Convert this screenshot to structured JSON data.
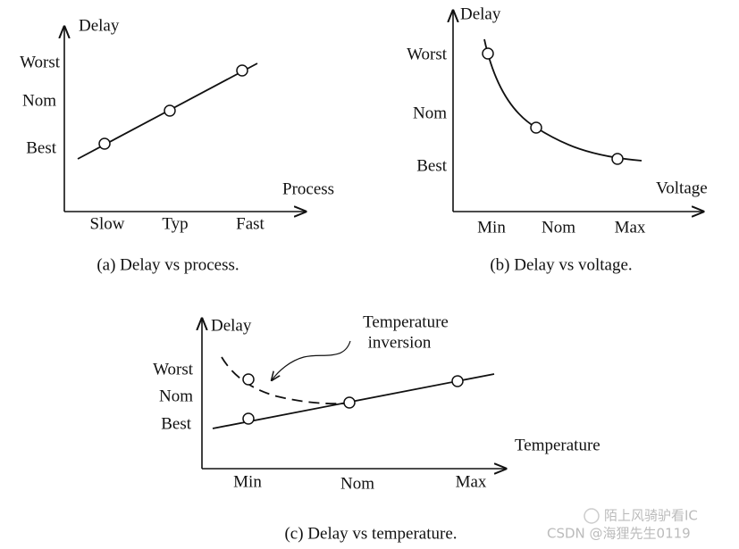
{
  "panels": [
    {
      "y_label": "Delay",
      "x_label": "Process",
      "y_levels": [
        "Worst",
        "Nom",
        "Best"
      ],
      "x_levels": [
        "Slow",
        "Typ",
        "Fast"
      ],
      "caption": "(a) Delay vs process."
    },
    {
      "y_label": "Delay",
      "x_label": "Voltage",
      "y_levels": [
        "Worst",
        "Nom",
        "Best"
      ],
      "x_levels": [
        "Min",
        "Nom",
        "Max"
      ],
      "caption": "(b) Delay vs voltage."
    },
    {
      "y_label": "Delay",
      "x_label": "Temperature",
      "y_levels": [
        "Worst",
        "Nom",
        "Best"
      ],
      "x_levels": [
        "Min",
        "Nom",
        "Max"
      ],
      "caption": "(c) Delay vs temperature."
    }
  ],
  "annotation": [
    "Temperature",
    "inversion"
  ],
  "watermark": [
    "陌上风骑驴看IC",
    "CSDN @海狸先生0119"
  ]
}
